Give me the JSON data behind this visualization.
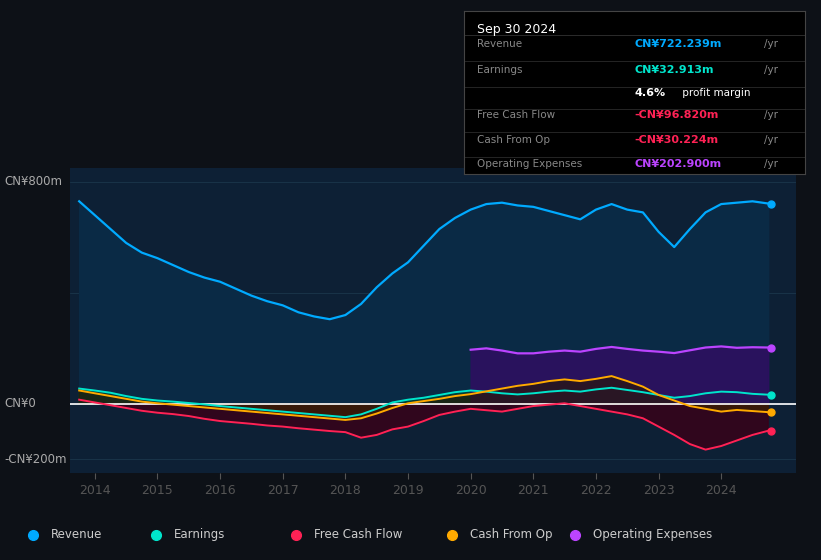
{
  "bg_color": "#0d1117",
  "plot_bg_color": "#0d2035",
  "ylim": [
    -250,
    850
  ],
  "xlim": [
    2013.6,
    2025.2
  ],
  "years": [
    2013.75,
    2014.0,
    2014.25,
    2014.5,
    2014.75,
    2015.0,
    2015.25,
    2015.5,
    2015.75,
    2016.0,
    2016.25,
    2016.5,
    2016.75,
    2017.0,
    2017.25,
    2017.5,
    2017.75,
    2018.0,
    2018.25,
    2018.5,
    2018.75,
    2019.0,
    2019.25,
    2019.5,
    2019.75,
    2020.0,
    2020.25,
    2020.5,
    2020.75,
    2021.0,
    2021.25,
    2021.5,
    2021.75,
    2022.0,
    2022.25,
    2022.5,
    2022.75,
    2023.0,
    2023.25,
    2023.5,
    2023.75,
    2024.0,
    2024.25,
    2024.5,
    2024.75
  ],
  "revenue": [
    730,
    680,
    630,
    580,
    545,
    525,
    500,
    475,
    455,
    440,
    415,
    390,
    370,
    355,
    330,
    315,
    305,
    320,
    360,
    420,
    470,
    510,
    570,
    630,
    670,
    700,
    720,
    725,
    715,
    710,
    695,
    680,
    665,
    700,
    720,
    700,
    690,
    620,
    565,
    630,
    690,
    720,
    725,
    730,
    722
  ],
  "earnings": [
    55,
    48,
    40,
    28,
    18,
    12,
    8,
    3,
    -2,
    -8,
    -13,
    -18,
    -23,
    -28,
    -33,
    -38,
    -43,
    -48,
    -38,
    -18,
    5,
    15,
    22,
    32,
    42,
    48,
    44,
    38,
    34,
    38,
    44,
    48,
    44,
    52,
    58,
    50,
    42,
    32,
    22,
    28,
    38,
    44,
    42,
    36,
    33
  ],
  "free_cash_flow": [
    15,
    5,
    -5,
    -15,
    -25,
    -32,
    -37,
    -44,
    -54,
    -62,
    -67,
    -72,
    -78,
    -82,
    -88,
    -93,
    -98,
    -102,
    -122,
    -112,
    -92,
    -82,
    -62,
    -40,
    -28,
    -18,
    -23,
    -28,
    -18,
    -8,
    -3,
    2,
    -8,
    -18,
    -28,
    -38,
    -52,
    -82,
    -112,
    -145,
    -165,
    -152,
    -132,
    -112,
    -97
  ],
  "cash_from_op": [
    48,
    38,
    28,
    18,
    8,
    2,
    -3,
    -8,
    -13,
    -18,
    -23,
    -28,
    -33,
    -38,
    -43,
    -48,
    -53,
    -58,
    -52,
    -35,
    -15,
    2,
    10,
    18,
    28,
    35,
    45,
    55,
    65,
    72,
    82,
    88,
    82,
    90,
    100,
    82,
    62,
    32,
    12,
    -8,
    -18,
    -28,
    -22,
    -26,
    -30
  ],
  "operating_expenses": [
    0,
    0,
    0,
    0,
    0,
    0,
    0,
    0,
    0,
    0,
    0,
    0,
    0,
    0,
    0,
    0,
    0,
    0,
    0,
    0,
    0,
    0,
    0,
    0,
    0,
    195,
    200,
    192,
    182,
    182,
    188,
    192,
    188,
    198,
    205,
    198,
    192,
    188,
    183,
    193,
    203,
    207,
    202,
    204,
    203
  ],
  "revenue_color": "#00aaff",
  "earnings_color": "#00e5cc",
  "free_cash_flow_color": "#ff2255",
  "cash_from_op_color": "#ffaa00",
  "operating_expenses_color": "#bb44ff",
  "revenue_fill_color": "#0a2a45",
  "earnings_fill_color": "#004433",
  "operating_expenses_fill_color": "#2d1060",
  "fcf_neg_fill_color": "#3a0018",
  "cashop_neg_fill_color": "#3a2000",
  "zero_line_color": "#ffffff",
  "grid_color": "#1e3a50",
  "y_label_top": "CN¥800m",
  "y_label_zero": "CN¥0",
  "y_label_bottom": "-CN¥200m",
  "xticks": [
    2014,
    2015,
    2016,
    2017,
    2018,
    2019,
    2020,
    2021,
    2022,
    2023,
    2024
  ],
  "info_box": {
    "date": "Sep 30 2024",
    "rows": [
      {
        "label": "Revenue",
        "value": "CN¥722.239m",
        "value_color": "#00aaff",
        "suffix": "/yr"
      },
      {
        "label": "Earnings",
        "value": "CN¥32.913m",
        "value_color": "#00e5cc",
        "suffix": "/yr"
      },
      {
        "label": "",
        "value": "4.6%",
        "value_color": "#ffffff",
        "suffix": " profit margin",
        "suffix_color": "#ffffff"
      },
      {
        "label": "Free Cash Flow",
        "value": "-CN¥96.820m",
        "value_color": "#ff2255",
        "suffix": "/yr"
      },
      {
        "label": "Cash From Op",
        "value": "-CN¥30.224m",
        "value_color": "#ff2255",
        "suffix": "/yr"
      },
      {
        "label": "Operating Expenses",
        "value": "CN¥202.900m",
        "value_color": "#bb44ff",
        "suffix": "/yr"
      }
    ]
  },
  "legend_items": [
    {
      "label": "Revenue",
      "color": "#00aaff"
    },
    {
      "label": "Earnings",
      "color": "#00e5cc"
    },
    {
      "label": "Free Cash Flow",
      "color": "#ff2255"
    },
    {
      "label": "Cash From Op",
      "color": "#ffaa00"
    },
    {
      "label": "Operating Expenses",
      "color": "#bb44ff"
    }
  ],
  "end_dots": [
    {
      "series": "revenue",
      "color": "#00aaff"
    },
    {
      "series": "earnings",
      "color": "#00e5cc"
    },
    {
      "series": "free_cash_flow",
      "color": "#ff2255"
    },
    {
      "series": "cash_from_op",
      "color": "#ffaa00"
    },
    {
      "series": "operating_expenses",
      "color": "#bb44ff"
    }
  ]
}
